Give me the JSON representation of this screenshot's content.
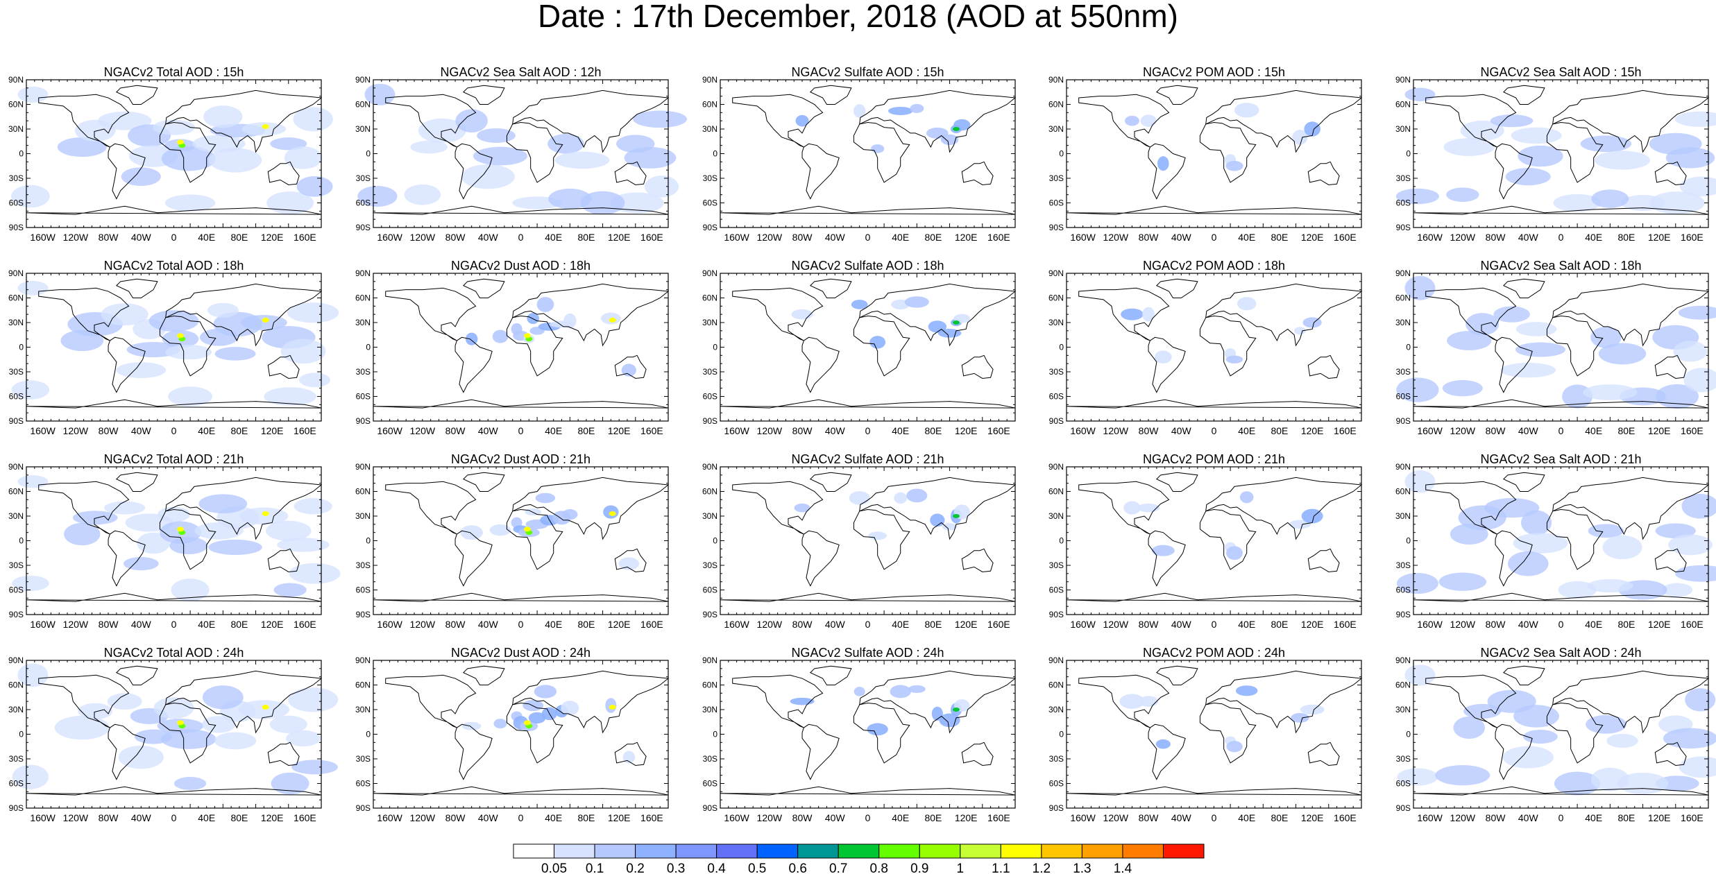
{
  "title": "Date : 17th December, 2018 (AOD at 550nm)",
  "panels": [
    [
      "NGACv2 Total AOD : 15h",
      "NGACv2 Sea Salt  AOD : 12h",
      "NGACv2 Sulfate AOD : 15h",
      "NGACv2 POM AOD : 15h",
      "NGACv2 Sea Salt AOD : 15h"
    ],
    [
      "NGACv2 Total AOD : 18h",
      "NGACv2 Dust AOD : 18h",
      "NGACv2 Sulfate AOD : 18h",
      "NGACv2 POM AOD : 18h",
      "NGACv2 Sea Salt AOD : 18h"
    ],
    [
      "NGACv2 Total AOD : 21h",
      "NGACv2 Dust AOD : 21h",
      "NGACv2 Sulfate AOD : 21h",
      "NGACv2 POM AOD : 21h",
      "NGACv2 Sea Salt AOD : 21h"
    ],
    [
      "NGACv2 Total AOD : 24h",
      "NGACv2 Dust AOD : 24h",
      "NGACv2 Sulfate AOD : 24h",
      "NGACv2 POM AOD : 24h",
      "NGACv2 Sea Salt  AOD : 24h"
    ]
  ],
  "lat_labels": [
    "90N",
    "60N",
    "30N",
    "0",
    "30S",
    "60S",
    "90S"
  ],
  "lon_labels": [
    "160W",
    "120W",
    "80W",
    "40W",
    "0",
    "40E",
    "80E",
    "120E",
    "160E"
  ],
  "colorbar": {
    "levels": [
      "0.05",
      "0.1",
      "0.2",
      "0.3",
      "0.4",
      "0.5",
      "0.6",
      "0.7",
      "0.8",
      "0.9",
      "1",
      "1.1",
      "1.2",
      "1.3",
      "1.4"
    ],
    "colors": [
      "#ffffff",
      "#d6e2ff",
      "#b5c9ff",
      "#8eb2ff",
      "#7f96ff",
      "#6370f8",
      "#0063ff",
      "#009696",
      "#00c633",
      "#63ff00",
      "#96ff00",
      "#c6ff33",
      "#ffff00",
      "#ffc600",
      "#ffa000",
      "#ff7c00",
      "#ff1900"
    ]
  },
  "colors": {
    "land_outline": "#000000",
    "light_aod": "#d6e2ff",
    "mid_aod": "#b5c9ff",
    "high_aod": "#8eb2ff"
  }
}
